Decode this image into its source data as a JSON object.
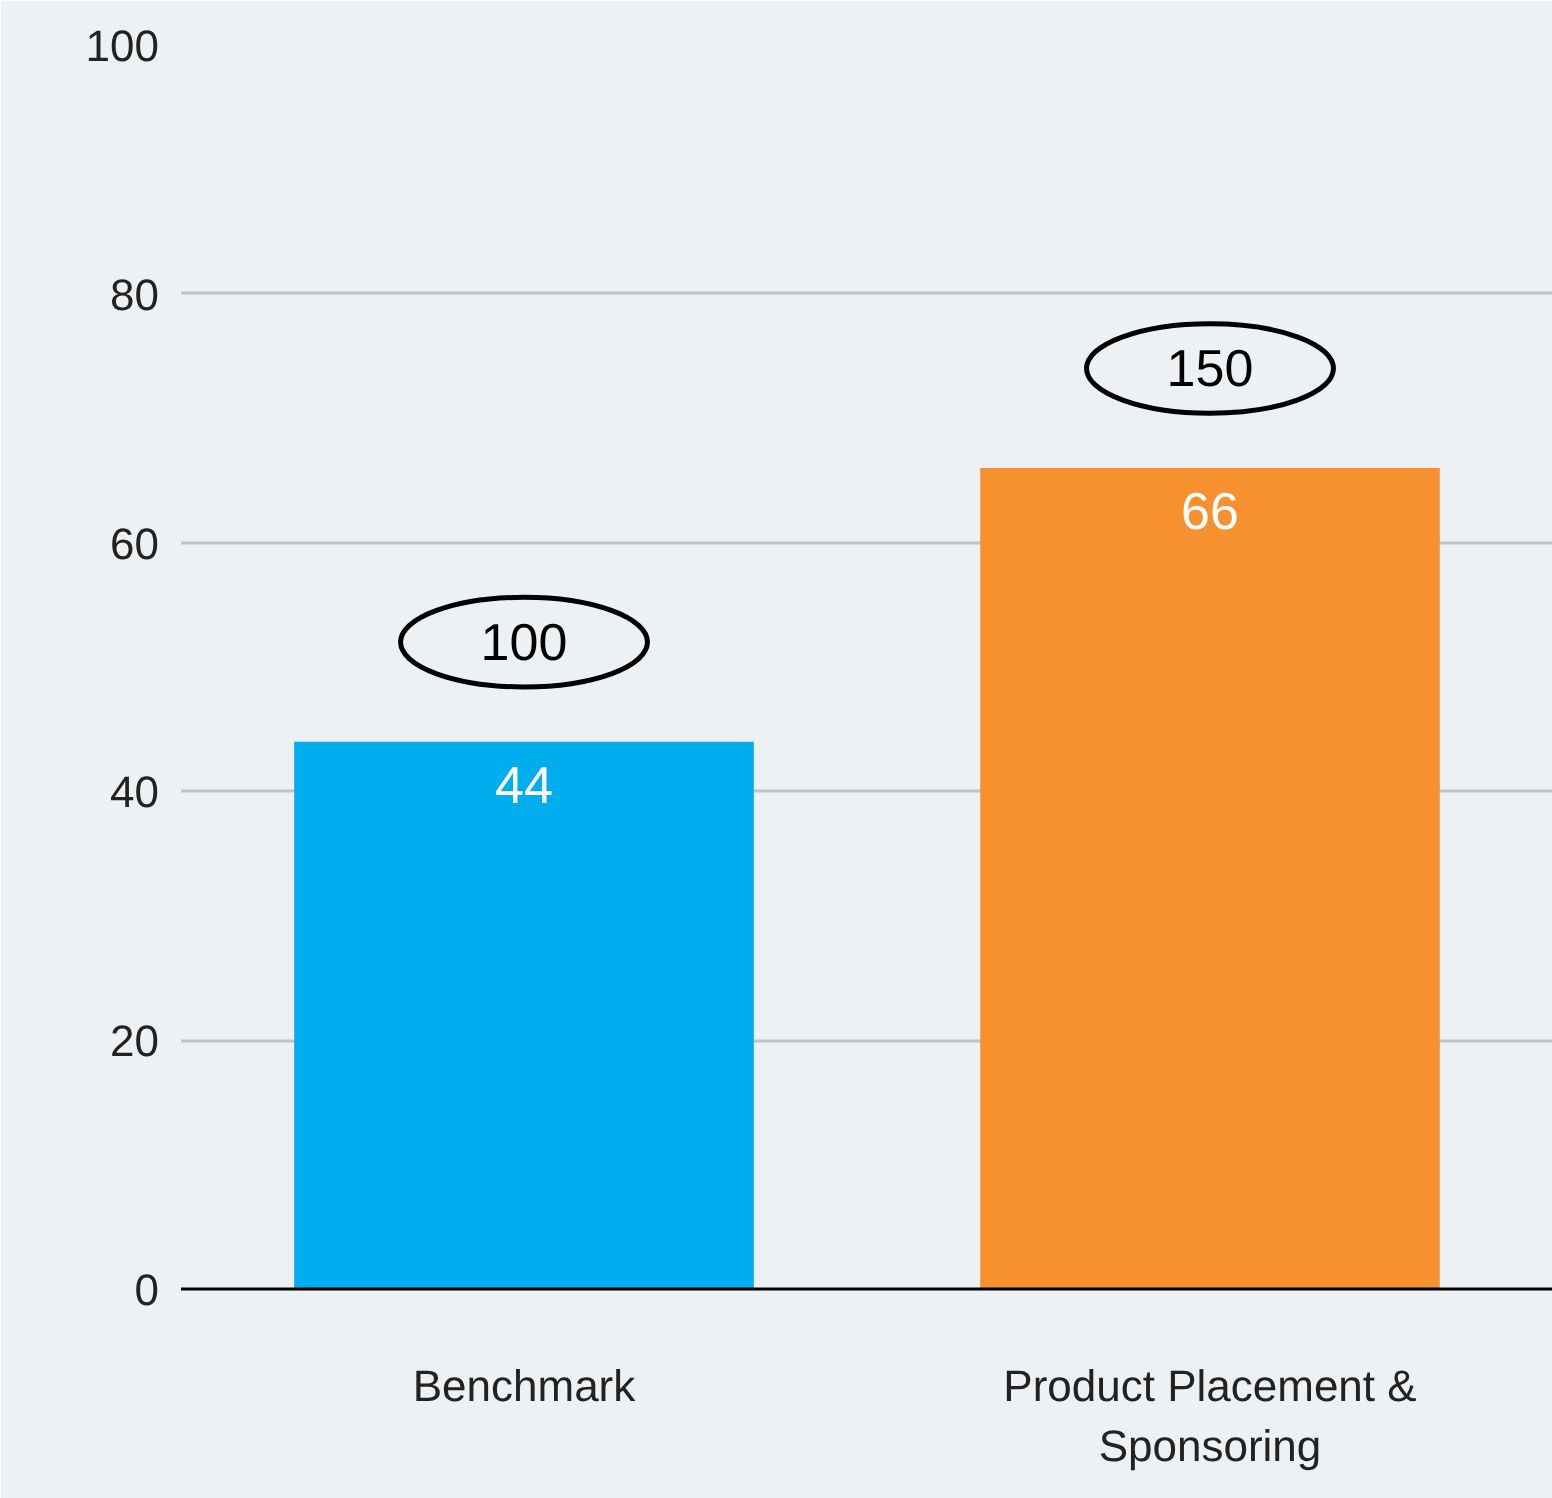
{
  "chart_data": {
    "type": "bar",
    "categories": [
      "Benchmark",
      "Product Placement & Sponsoring"
    ],
    "values": [
      44,
      66
    ],
    "colors": [
      "#00aeef",
      "#f7902f"
    ],
    "data_labels": true,
    "ylim": [
      0,
      100
    ],
    "yticks": [
      0,
      20,
      40,
      60,
      80,
      100
    ],
    "grid": "y",
    "annotations": [
      "100",
      "150"
    ]
  }
}
